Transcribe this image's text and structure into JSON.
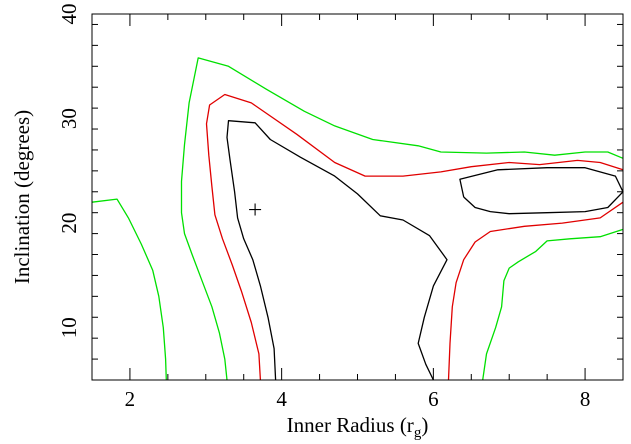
{
  "chart_data": {
    "type": "line",
    "title": "",
    "xlabel": "Inner Radius (r",
    "xlabel_sub": "g",
    "xlabel_close": ")",
    "ylabel": "Inclination (degrees)",
    "xlim": [
      1.5,
      8.5
    ],
    "ylim": [
      5,
      40
    ],
    "xticks": [
      2,
      4,
      6,
      8
    ],
    "yticks": [
      10,
      20,
      30,
      40
    ],
    "xtick_labels": [
      "2",
      "4",
      "6",
      "8"
    ],
    "ytick_labels": [
      "10",
      "20",
      "30",
      "40"
    ],
    "grid": false,
    "legend": "none",
    "best_fit_marker": {
      "x": 3.65,
      "y": 21.3,
      "symbol": "+",
      "color": "#000000"
    },
    "series": [
      {
        "color": "#00e000",
        "paths": [
          [
            [
              1.5,
              22.0
            ],
            [
              1.83,
              22.3
            ],
            [
              1.98,
              20.5
            ],
            [
              2.15,
              18.0
            ],
            [
              2.3,
              15.5
            ],
            [
              2.38,
              13.0
            ],
            [
              2.44,
              10.0
            ],
            [
              2.47,
              7.0
            ],
            [
              2.48,
              5.0
            ]
          ],
          [
            [
              3.28,
              5.0
            ],
            [
              3.25,
              7.0
            ],
            [
              3.18,
              9.5
            ],
            [
              3.08,
              12.0
            ],
            [
              2.95,
              14.5
            ],
            [
              2.82,
              17.0
            ],
            [
              2.72,
              19.0
            ],
            [
              2.68,
              21.0
            ],
            [
              2.68,
              24.0
            ],
            [
              2.72,
              27.5
            ],
            [
              2.78,
              31.5
            ],
            [
              2.9,
              35.8
            ],
            [
              3.3,
              35.0
            ],
            [
              3.8,
              32.8
            ],
            [
              4.3,
              30.7
            ],
            [
              4.7,
              29.3
            ],
            [
              5.2,
              28.0
            ],
            [
              5.8,
              27.4
            ],
            [
              6.1,
              26.8
            ],
            [
              6.7,
              26.7
            ],
            [
              7.2,
              26.8
            ],
            [
              7.6,
              26.5
            ],
            [
              8.0,
              26.8
            ],
            [
              8.3,
              26.8
            ],
            [
              8.5,
              26.2
            ]
          ],
          [
            [
              6.65,
              5.0
            ],
            [
              6.7,
              7.5
            ],
            [
              6.82,
              10.0
            ],
            [
              6.9,
              12.0
            ],
            [
              6.93,
              14.5
            ],
            [
              7.0,
              15.7
            ],
            [
              7.12,
              16.3
            ],
            [
              7.35,
              17.3
            ],
            [
              7.5,
              18.3
            ],
            [
              7.8,
              18.5
            ],
            [
              8.2,
              18.7
            ],
            [
              8.5,
              19.4
            ]
          ]
        ]
      },
      {
        "color": "#e00000",
        "paths": [
          [
            [
              3.72,
              5.0
            ],
            [
              3.7,
              7.5
            ],
            [
              3.6,
              10.5
            ],
            [
              3.47,
              13.5
            ],
            [
              3.35,
              16.0
            ],
            [
              3.22,
              18.5
            ],
            [
              3.12,
              20.8
            ],
            [
              3.08,
              23.5
            ],
            [
              3.04,
              26.5
            ],
            [
              3.01,
              29.5
            ],
            [
              3.05,
              31.3
            ],
            [
              3.25,
              32.3
            ],
            [
              3.6,
              31.5
            ],
            [
              4.2,
              28.5
            ],
            [
              4.7,
              25.8
            ],
            [
              5.1,
              24.5
            ],
            [
              5.6,
              24.5
            ],
            [
              6.1,
              24.9
            ],
            [
              6.5,
              25.4
            ],
            [
              7.0,
              25.8
            ],
            [
              7.4,
              25.6
            ],
            [
              7.9,
              26.0
            ],
            [
              8.2,
              25.8
            ],
            [
              8.5,
              25.1
            ]
          ],
          [
            [
              6.2,
              5.0
            ],
            [
              6.22,
              8.5
            ],
            [
              6.25,
              12.0
            ],
            [
              6.3,
              14.3
            ],
            [
              6.4,
              16.5
            ],
            [
              6.55,
              18.2
            ],
            [
              6.75,
              19.2
            ],
            [
              7.2,
              19.7
            ],
            [
              7.7,
              20.0
            ],
            [
              8.2,
              20.5
            ],
            [
              8.5,
              22.0
            ]
          ]
        ]
      },
      {
        "color": "#000000",
        "paths": [
          [
            [
              3.92,
              5.0
            ],
            [
              3.9,
              8.0
            ],
            [
              3.82,
              11.0
            ],
            [
              3.72,
              14.0
            ],
            [
              3.62,
              16.5
            ],
            [
              3.5,
              18.5
            ],
            [
              3.42,
              20.5
            ],
            [
              3.38,
              23.0
            ],
            [
              3.32,
              26.0
            ],
            [
              3.28,
              28.2
            ],
            [
              3.3,
              29.8
            ],
            [
              3.65,
              29.6
            ],
            [
              3.85,
              28.0
            ],
            [
              4.25,
              26.3
            ],
            [
              4.7,
              24.5
            ],
            [
              5.0,
              22.8
            ],
            [
              5.3,
              20.7
            ],
            [
              5.6,
              20.3
            ],
            [
              5.95,
              18.8
            ],
            [
              6.18,
              16.5
            ],
            [
              6.0,
              14.0
            ],
            [
              5.88,
              11.0
            ],
            [
              5.8,
              8.5
            ],
            [
              5.9,
              6.5
            ],
            [
              6.0,
              5.0
            ]
          ],
          [
            [
              6.4,
              22.5
            ],
            [
              6.35,
              24.2
            ],
            [
              6.85,
              25.1
            ],
            [
              7.5,
              25.3
            ],
            [
              8.0,
              25.3
            ],
            [
              8.4,
              24.5
            ],
            [
              8.5,
              23.0
            ],
            [
              8.3,
              21.5
            ],
            [
              8.0,
              21.1
            ],
            [
              7.5,
              21.0
            ],
            [
              7.0,
              20.9
            ],
            [
              6.75,
              21.1
            ],
            [
              6.55,
              21.5
            ],
            [
              6.4,
              22.5
            ]
          ]
        ]
      }
    ]
  }
}
